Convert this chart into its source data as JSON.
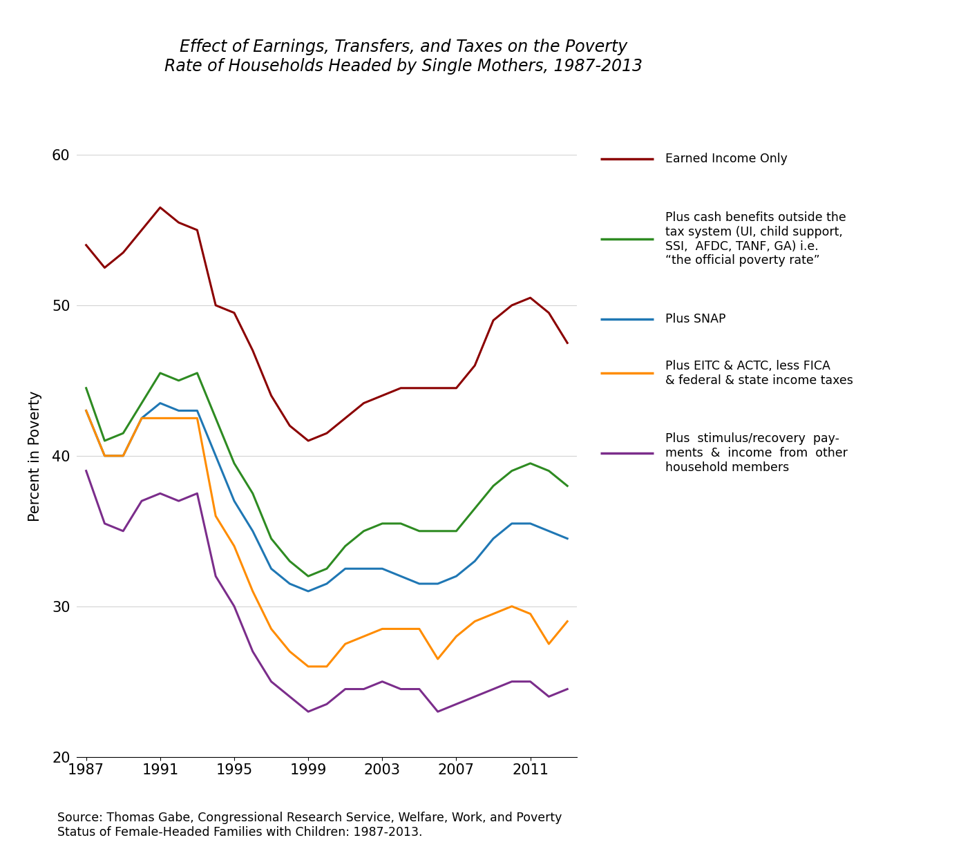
{
  "title": "Effect of Earnings, Transfers, and Taxes on the Poverty\nRate of Households Headed by Single Mothers, 1987-2013",
  "xlabel": "",
  "ylabel": "Percent in Poverty",
  "source_text": "Source: Thomas Gabe, Congressional Research Service, Welfare, Work, and Poverty\nStatus of Female-Headed Families with Children: 1987-2013.",
  "years": [
    1987,
    1988,
    1989,
    1990,
    1991,
    1992,
    1993,
    1994,
    1995,
    1996,
    1997,
    1998,
    1999,
    2000,
    2001,
    2002,
    2003,
    2004,
    2005,
    2006,
    2007,
    2008,
    2009,
    2010,
    2011,
    2012,
    2013
  ],
  "earned_income_only": [
    54.0,
    52.5,
    53.5,
    55.0,
    56.5,
    55.5,
    55.0,
    50.0,
    49.5,
    47.0,
    44.0,
    42.0,
    41.0,
    41.5,
    42.5,
    43.5,
    44.0,
    44.5,
    44.5,
    44.5,
    44.5,
    46.0,
    49.0,
    50.0,
    50.5,
    49.5,
    47.5
  ],
  "plus_cash_benefits": [
    44.5,
    41.0,
    41.5,
    43.5,
    45.5,
    45.0,
    45.5,
    42.5,
    39.5,
    37.5,
    34.5,
    33.0,
    32.0,
    32.5,
    34.0,
    35.0,
    35.5,
    35.5,
    35.0,
    35.0,
    35.0,
    36.5,
    38.0,
    39.0,
    39.5,
    39.0,
    38.0
  ],
  "plus_snap": [
    43.0,
    40.0,
    40.0,
    42.5,
    43.5,
    43.0,
    43.0,
    40.0,
    37.0,
    35.0,
    32.5,
    31.5,
    31.0,
    31.5,
    32.5,
    32.5,
    32.5,
    32.0,
    31.5,
    31.5,
    32.0,
    33.0,
    34.5,
    35.5,
    35.5,
    35.0,
    34.5
  ],
  "plus_eitc_actc": [
    43.0,
    40.0,
    40.0,
    42.5,
    42.5,
    42.5,
    42.5,
    36.0,
    34.0,
    31.0,
    28.5,
    27.0,
    26.0,
    26.0,
    27.5,
    28.0,
    28.5,
    28.5,
    28.5,
    26.5,
    28.0,
    29.0,
    29.5,
    30.0,
    29.5,
    27.5,
    29.0
  ],
  "plus_stimulus": [
    39.0,
    35.5,
    35.0,
    37.0,
    37.5,
    37.0,
    37.5,
    32.0,
    30.0,
    27.0,
    25.0,
    24.0,
    23.0,
    23.5,
    24.5,
    24.5,
    25.0,
    24.5,
    24.5,
    23.0,
    23.5,
    24.0,
    24.5,
    25.0,
    25.0,
    24.0,
    24.5
  ],
  "colors": {
    "earned_income_only": "#8B0000",
    "plus_cash_benefits": "#2E8B22",
    "plus_snap": "#1F77B4",
    "plus_eitc_actc": "#FF8C00",
    "plus_stimulus": "#7B2D8B"
  },
  "ylim": [
    20,
    60
  ],
  "yticks": [
    20,
    30,
    40,
    50,
    60
  ],
  "xticks": [
    1987,
    1991,
    1995,
    1999,
    2003,
    2007,
    2011
  ],
  "legend_labels": {
    "earned_income_only": "Earned Income Only",
    "plus_cash_benefits": "Plus cash benefits outside the\ntax system (UI, child support,\nSSI,  AFDC, TANF, GA) i.e.\n“the official poverty rate”",
    "plus_snap": "Plus SNAP",
    "plus_eitc_actc": "Plus EITC & ACTC, less FICA\n& federal & state income taxes",
    "plus_stimulus": "Plus  stimulus/recovery  pay-\nments  &  income  from  other\nhousehold members"
  }
}
